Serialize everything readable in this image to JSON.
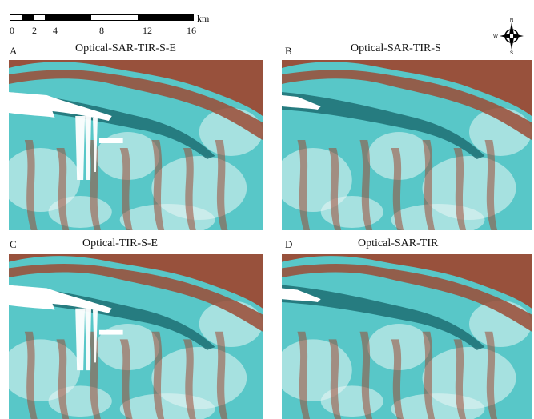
{
  "scale_bar": {
    "ticks": [
      "0",
      "2",
      "4",
      "8",
      "12",
      "16"
    ],
    "unit": "km"
  },
  "compass": {
    "north": "N",
    "south": "S",
    "west": "W",
    "east": ""
  },
  "panels": [
    {
      "letter": "A",
      "title": "Optical-SAR-TIR-S-E",
      "ice_extent": "large"
    },
    {
      "letter": "B",
      "title": "Optical-SAR-TIR-S",
      "ice_extent": "small"
    },
    {
      "letter": "C",
      "title": "Optical-TIR-S-E",
      "ice_extent": "large"
    },
    {
      "letter": "D",
      "title": "Optical-SAR-TIR",
      "ice_extent": "small"
    }
  ],
  "colors": {
    "glacier": "#58c7c8",
    "glacier_dark": "#1d6f73",
    "mountain": "#9c4b35",
    "snow": "#e7f6f4",
    "mask": "#ffffff"
  }
}
